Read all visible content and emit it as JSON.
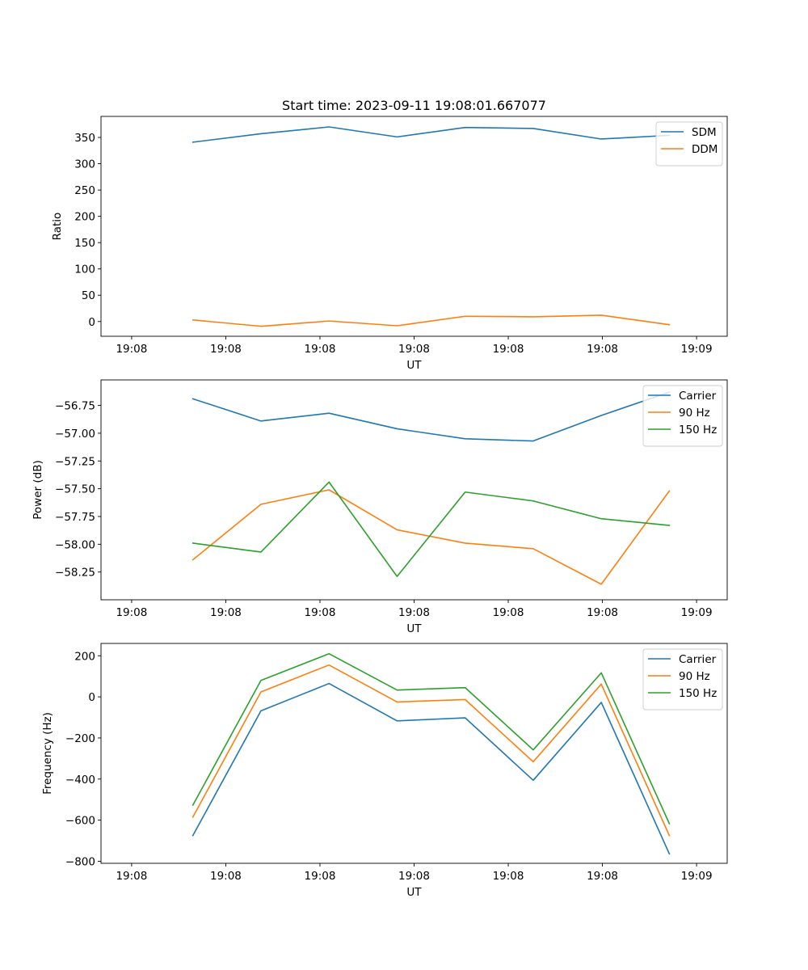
{
  "chart_data": [
    {
      "type": "line",
      "title": "Start time: 2023-09-11 19:08:01.667077",
      "xlabel": "UT",
      "ylabel": "Ratio",
      "x_tick_labels": [
        "19:08",
        "19:08",
        "19:08",
        "19:08",
        "19:08",
        "19:08",
        "19:09"
      ],
      "xlim": [
        -1.2,
        17.2
      ],
      "ylim": [
        -28,
        390
      ],
      "y_ticks": [
        0,
        50,
        100,
        150,
        200,
        250,
        300,
        350
      ],
      "legend_position": "top-right",
      "grid": false,
      "x": [
        1.5,
        3.5,
        5.5,
        7.5,
        9.5,
        11.5,
        13.5,
        15.5
      ],
      "series": [
        {
          "name": "SDM",
          "color": "#1f77b4",
          "values": [
            341,
            357,
            370,
            351,
            369,
            367,
            347,
            354
          ]
        },
        {
          "name": "DDM",
          "color": "#ff7f0e",
          "values": [
            3,
            -9,
            1,
            -8,
            10,
            9,
            12,
            -6
          ]
        }
      ]
    },
    {
      "type": "line",
      "title": "",
      "xlabel": "UT",
      "ylabel": "Power (dB)",
      "x_tick_labels": [
        "19:08",
        "19:08",
        "19:08",
        "19:08",
        "19:08",
        "19:08",
        "19:09"
      ],
      "xlim": [
        -1.2,
        17.2
      ],
      "ylim": [
        -58.5,
        -56.52
      ],
      "y_ticks": [
        -58.25,
        -58.0,
        -57.75,
        -57.5,
        -57.25,
        -57.0,
        -56.75
      ],
      "y_tick_labels": [
        "−58.25",
        "−58.00",
        "−57.75",
        "−57.50",
        "−57.25",
        "−57.00",
        "−56.75"
      ],
      "legend_position": "top-right",
      "grid": false,
      "x": [
        1.5,
        3.5,
        5.5,
        7.5,
        9.5,
        11.5,
        13.5,
        15.5
      ],
      "series": [
        {
          "name": "Carrier",
          "color": "#1f77b4",
          "values": [
            -56.69,
            -56.89,
            -56.82,
            -56.96,
            -57.05,
            -57.07,
            -56.84,
            -56.63
          ]
        },
        {
          "name": "90 Hz",
          "color": "#ff7f0e",
          "values": [
            -58.14,
            -57.64,
            -57.51,
            -57.87,
            -57.99,
            -58.04,
            -58.36,
            -57.52
          ]
        },
        {
          "name": "150 Hz",
          "color": "#2ca02c",
          "values": [
            -57.99,
            -58.07,
            -57.44,
            -58.29,
            -57.53,
            -57.61,
            -57.77,
            -57.83
          ]
        }
      ]
    },
    {
      "type": "line",
      "title": "",
      "xlabel": "UT",
      "ylabel": "Frequency (Hz)",
      "x_tick_labels": [
        "19:08",
        "19:08",
        "19:08",
        "19:08",
        "19:08",
        "19:08",
        "19:09"
      ],
      "xlim": [
        -1.2,
        17.2
      ],
      "ylim": [
        -810,
        260
      ],
      "y_ticks": [
        -800,
        -600,
        -400,
        -200,
        0,
        200
      ],
      "y_tick_labels": [
        "−800",
        "−600",
        "−400",
        "−200",
        "0",
        "200"
      ],
      "legend_position": "top-right",
      "grid": false,
      "x": [
        1.5,
        3.5,
        5.5,
        7.5,
        9.5,
        11.5,
        13.5,
        15.5
      ],
      "series": [
        {
          "name": "Carrier",
          "color": "#1f77b4",
          "values": [
            -675,
            -68,
            65,
            -117,
            -102,
            -406,
            -27,
            -764
          ]
        },
        {
          "name": "90 Hz",
          "color": "#ff7f0e",
          "values": [
            -585,
            24,
            155,
            -25,
            -13,
            -316,
            62,
            -675
          ]
        },
        {
          "name": "150 Hz",
          "color": "#2ca02c",
          "values": [
            -527,
            80,
            210,
            33,
            45,
            -258,
            117,
            -617
          ]
        }
      ]
    }
  ]
}
